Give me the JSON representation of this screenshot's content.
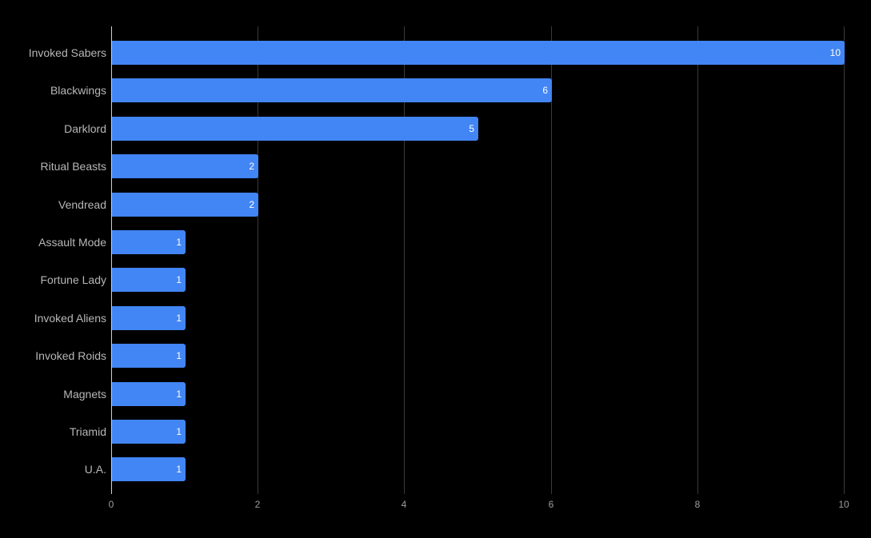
{
  "chart_data": {
    "type": "bar",
    "orientation": "horizontal",
    "title": "",
    "xlabel": "",
    "ylabel": "",
    "categories": [
      "Invoked Sabers",
      "Blackwings",
      "Darklord",
      "Ritual Beasts",
      "Vendread",
      "Assault Mode",
      "Fortune Lady",
      "Invoked Aliens",
      "Invoked Roids",
      "Magnets",
      "Triamid",
      "U.A."
    ],
    "values": [
      10,
      6,
      5,
      2,
      2,
      1,
      1,
      1,
      1,
      1,
      1,
      1
    ],
    "xlim": [
      0,
      10
    ],
    "xticks": [
      "0",
      "2",
      "4",
      "6",
      "8",
      "10"
    ],
    "grid": true,
    "legend": "none",
    "data_labels": true,
    "colors": {
      "bar": "#4285f4",
      "background": "#000000",
      "label": "#b7b7b7",
      "grid": "#3a3a3a"
    }
  }
}
